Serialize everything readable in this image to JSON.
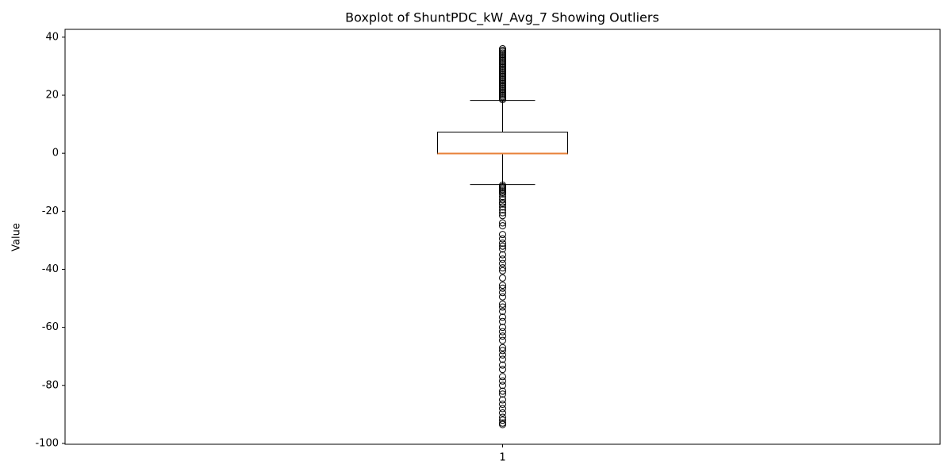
{
  "chart_data": {
    "type": "box",
    "title": "Boxplot of ShuntPDC_kW_Avg_7 Showing Outliers",
    "ylabel": "Value",
    "categories": [
      "1"
    ],
    "xlim": [
      0.5,
      1.5
    ],
    "ylim": [
      -100.3,
      42.7
    ],
    "yticks": [
      -100,
      -80,
      -60,
      -40,
      -20,
      0,
      20,
      40
    ],
    "box_color": "#000000",
    "median_color": "#e8823a",
    "boxes": [
      {
        "whislo": -10.8,
        "q1": -0.2,
        "med": -0.1,
        "q3": 7.3,
        "whishi": 18.2,
        "fliers": [
          18.5,
          19,
          19.5,
          20,
          20.5,
          21,
          21.5,
          22,
          22.5,
          23,
          23.5,
          24,
          24.5,
          25,
          25.5,
          26,
          26.5,
          27,
          27.5,
          28,
          28.5,
          29,
          29.5,
          30,
          30.5,
          31,
          31.5,
          32,
          32.5,
          33,
          33.5,
          34,
          34.5,
          35,
          35.5,
          36,
          -11,
          -11.5,
          -12,
          -12.5,
          -13,
          -13.5,
          -14,
          -15,
          -16,
          -17,
          -17.5,
          -18.5,
          -19.5,
          -20.5,
          -21.5,
          -24,
          -25,
          -28,
          -29.5,
          -31,
          -32,
          -33,
          -35,
          -36.5,
          -38,
          -39.5,
          -40.5,
          -43,
          -45.5,
          -46.5,
          -48,
          -49.5,
          -52,
          -53,
          -54.5,
          -56.5,
          -58,
          -60,
          -61.5,
          -63,
          -64.5,
          -67,
          -68,
          -69.5,
          -71,
          -73,
          -74.5,
          -77,
          -78.5,
          -80,
          -82,
          -83,
          -85,
          -86.5,
          -88,
          -89.5,
          -91,
          -92,
          -93,
          -93.5
        ]
      }
    ]
  }
}
